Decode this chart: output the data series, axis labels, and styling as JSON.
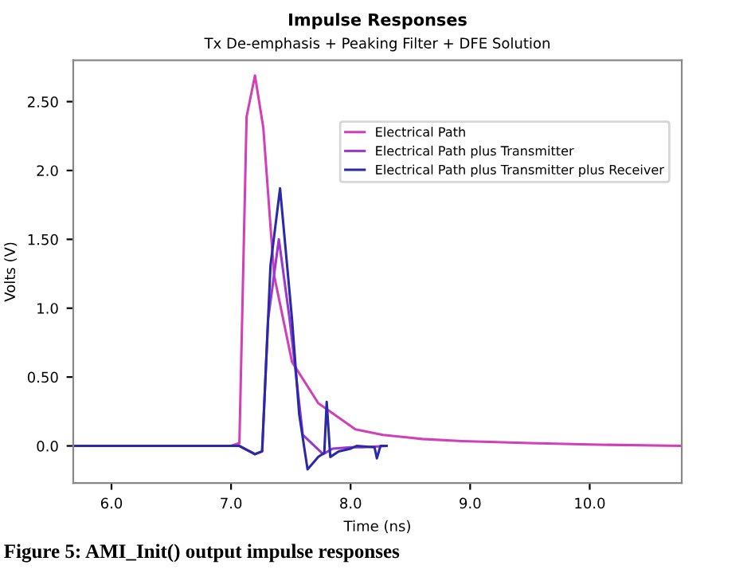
{
  "chart_data": {
    "type": "line",
    "title": "Impulse Responses",
    "subtitle": "Tx De-emphasis + Peaking Filter + DFE Solution",
    "xlabel": "Time (ns)",
    "ylabel": "Volts (V)",
    "annotations": [
      "Figure 5: AMI_Init() output impulse responses"
    ],
    "xlim": [
      5.68,
      10.77
    ],
    "ylim": [
      -0.27,
      2.8
    ],
    "xticks": [
      {
        "value": 6,
        "label": "6.0"
      },
      {
        "value": 7,
        "label": "7.0"
      },
      {
        "value": 8,
        "label": "8.0"
      },
      {
        "value": 9,
        "label": "9.0"
      },
      {
        "value": 10,
        "label": "10.0"
      }
    ],
    "yticks": [
      {
        "value": 0,
        "label": "0.0"
      },
      {
        "value": 0.5,
        "label": "0.50"
      },
      {
        "value": 1,
        "label": "1.0"
      },
      {
        "value": 1.5,
        "label": "1.50"
      },
      {
        "value": 2,
        "label": "2.0"
      },
      {
        "value": 2.5,
        "label": "2.50"
      }
    ],
    "grid": false,
    "legend": "top right",
    "series": [
      {
        "name": "Electrical Path",
        "color": "#d040b8",
        "x": [
          5.68,
          7.0,
          7.07,
          7.13,
          7.2,
          7.27,
          7.36,
          7.51,
          7.73,
          8.04,
          8.27,
          8.6,
          8.93,
          9.5,
          10.0,
          10.77
        ],
        "values": [
          0,
          0,
          0.02,
          2.39,
          2.69,
          2.31,
          1.24,
          0.61,
          0.31,
          0.12,
          0.08,
          0.05,
          0.035,
          0.02,
          0.01,
          0.0
        ]
      },
      {
        "name": "Electrical Path plus Transmitter",
        "color": "#9a38d0",
        "x": [
          5.68,
          7.0,
          7.07,
          7.2,
          7.26,
          7.31,
          7.4,
          7.49,
          7.6,
          7.77,
          7.85,
          8.0,
          8.1,
          8.3
        ],
        "values": [
          0,
          0,
          0,
          -0.06,
          -0.04,
          0.92,
          1.5,
          0.92,
          0.08,
          -0.06,
          -0.02,
          -0.01,
          -0.01,
          0
        ]
      },
      {
        "name": "Electrical Path plus Transmitter plus Receiver",
        "color": "#2a2aa8",
        "x": [
          5.68,
          7.0,
          7.07,
          7.2,
          7.26,
          7.33,
          7.41,
          7.51,
          7.57,
          7.64,
          7.73,
          7.78,
          7.8,
          7.83,
          7.9,
          8.0,
          8.05,
          8.2,
          8.22,
          8.25,
          8.3
        ],
        "values": [
          0,
          0,
          0,
          -0.06,
          -0.04,
          1.31,
          1.87,
          0.92,
          0.23,
          -0.17,
          -0.08,
          -0.05,
          0.32,
          -0.08,
          -0.04,
          -0.02,
          0,
          -0.01,
          -0.09,
          0,
          0
        ]
      }
    ]
  }
}
